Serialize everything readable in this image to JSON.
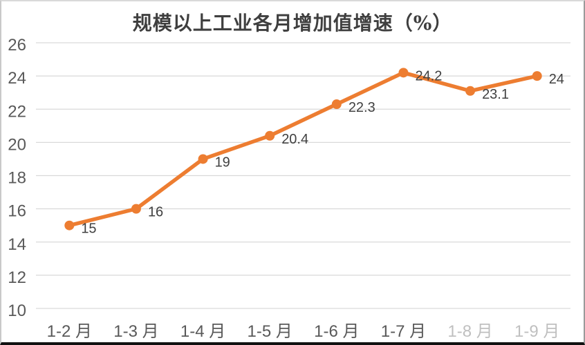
{
  "chart_data": {
    "type": "line",
    "title": "规模以上工业各月增加值增速（%）",
    "categories": [
      "1-2 月",
      "1-3 月",
      "1-4 月",
      "1-5 月",
      "1-6 月",
      "1-7 月",
      "1-8 月",
      "1-9 月"
    ],
    "values": [
      15,
      16,
      19,
      20.4,
      22.3,
      24.2,
      23.1,
      24
    ],
    "data_labels": [
      "15",
      "16",
      "19",
      "20.4",
      "22.3",
      "24.2",
      "23.1",
      "24"
    ],
    "y_ticks": [
      10,
      12,
      14,
      16,
      18,
      20,
      22,
      24,
      26
    ],
    "ylim": [
      10,
      26
    ],
    "xlabel": "",
    "ylabel": "",
    "grid": "horizontal",
    "legend": "none",
    "marker": "circle",
    "faded_x_label_indices": [
      6,
      7
    ]
  },
  "colors": {
    "line": "#ED7D31",
    "marker": "#ED7D31",
    "gridline": "#D9D9D9",
    "axis_label_text": "#595959",
    "data_label_text": "#404040",
    "title_text": "#3F3F3F",
    "background": "#FFFFFF"
  }
}
